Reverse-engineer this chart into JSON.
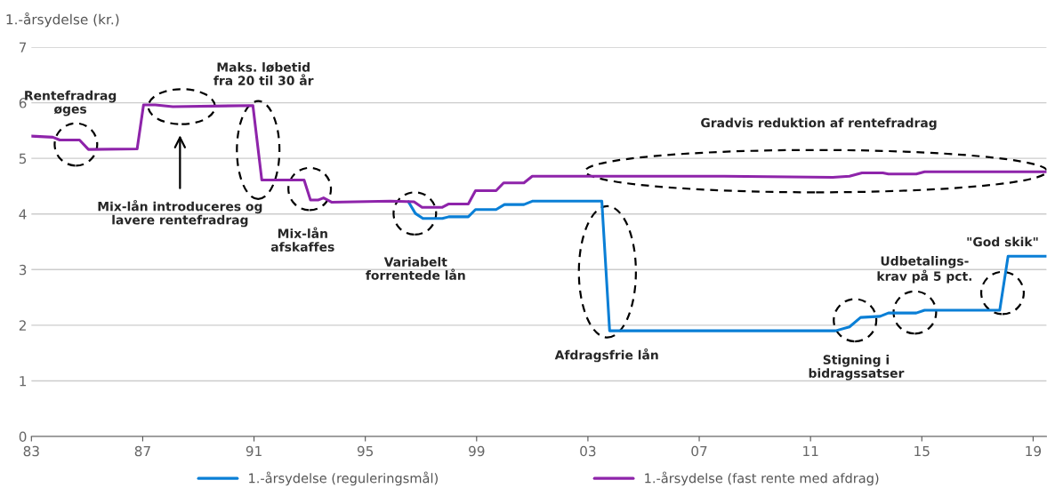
{
  "chart_data": {
    "type": "line",
    "ylabel": "1.-årsydelse (kr.)",
    "xlim": [
      1983,
      2019.48
    ],
    "ylim": [
      0,
      7
    ],
    "xticks": [
      {
        "value": 1983,
        "label": "83"
      },
      {
        "value": 1987,
        "label": "87"
      },
      {
        "value": 1991,
        "label": "91"
      },
      {
        "value": 1995,
        "label": "95"
      },
      {
        "value": 1999,
        "label": "99"
      },
      {
        "value": 2003,
        "label": "03"
      },
      {
        "value": 2007,
        "label": "07"
      },
      {
        "value": 2011,
        "label": "11"
      },
      {
        "value": 2015,
        "label": "15"
      },
      {
        "value": 2019,
        "label": "19"
      }
    ],
    "yticks": [
      0,
      1,
      2,
      3,
      4,
      5,
      6,
      7
    ],
    "grid": "y",
    "legend": "bottom",
    "line_style": "solid",
    "marker": "none",
    "series": [
      {
        "name": "1.-årsydelse (reguleringsmål)",
        "color": "#0a7fd6",
        "x": [
          1996.55,
          1996.8,
          1997.07,
          1997.77,
          1998.0,
          1998.7,
          1998.96,
          1999.7,
          2000.0,
          2000.7,
          2001.0,
          2003.5,
          2003.78,
          2011.9,
          2012.4,
          2012.8,
          2013.5,
          2013.8,
          2014.8,
          2015.1,
          2017.8,
          2018.1,
          2019.48
        ],
        "values": [
          4.22,
          4.01,
          3.92,
          3.92,
          3.95,
          3.95,
          4.08,
          4.08,
          4.17,
          4.17,
          4.23,
          4.23,
          1.9,
          1.9,
          1.97,
          2.14,
          2.16,
          2.22,
          2.22,
          2.27,
          2.27,
          3.24,
          3.24
        ]
      },
      {
        "name": "1.-årsydelse (fast rente med afdrag)",
        "color": "#8e24aa",
        "x": [
          1983.0,
          1983.77,
          1984.02,
          1984.73,
          1985.05,
          1986.8,
          1987.03,
          1987.45,
          1988.08,
          1990.96,
          1991.28,
          1992.8,
          1993.03,
          1993.3,
          1993.5,
          1993.8,
          1995.9,
          1996.75,
          1997.04,
          1997.77,
          1998.0,
          1998.7,
          1998.96,
          1999.7,
          1999.97,
          2000.7,
          2001.0,
          2007.9,
          2011.8,
          2012.4,
          2012.85,
          2013.6,
          2013.8,
          2014.8,
          2015.1,
          2019.48
        ],
        "values": [
          5.4,
          5.38,
          5.33,
          5.33,
          5.16,
          5.17,
          5.96,
          5.96,
          5.93,
          5.95,
          4.61,
          4.61,
          4.25,
          4.25,
          4.29,
          4.21,
          4.23,
          4.22,
          4.12,
          4.12,
          4.18,
          4.18,
          4.42,
          4.42,
          4.56,
          4.56,
          4.68,
          4.68,
          4.66,
          4.68,
          4.74,
          4.74,
          4.72,
          4.72,
          4.76,
          4.76
        ]
      }
    ],
    "annotations": [
      "Rentefradrag\nøges",
      "Maks. løbetid\nfra 20 til 30 år",
      "Mix-lån introduceres og\nlavere rentefradrag",
      "Mix-lån\nafskaffes",
      "Variabelt\nforrentede lån",
      "Gradvis reduktion af rentefradrag",
      "Afdragsfrie lån",
      "Stigning i\nbidragssatser",
      "Udbetalings-\nkrav på 5 pct.",
      "\"God skik\""
    ]
  }
}
